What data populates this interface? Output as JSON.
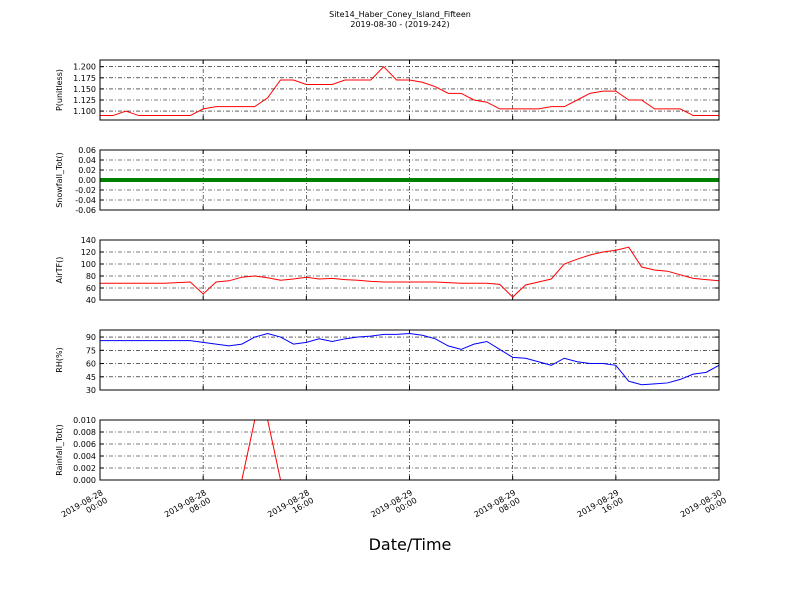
{
  "chart_data": {
    "type": "line",
    "title": "Site14_Haber_Coney_Island_Fifteen",
    "subtitle": "2019-08-30 - (2019-242)",
    "xlabel": "Date/Time",
    "grid": true,
    "xlim": [
      "2019-08-28 00:00",
      "2019-08-30 00:00"
    ],
    "xticks": [
      "2019-08-28 00:00",
      "2019-08-28 08:00",
      "2019-08-28 16:00",
      "2019-08-29 00:00",
      "2019-08-29 08:00",
      "2019-08-29 16:00",
      "2019-08-30 00:00"
    ],
    "x": [
      "2019-08-28 00:00",
      "2019-08-28 01:00",
      "2019-08-28 02:00",
      "2019-08-28 03:00",
      "2019-08-28 04:00",
      "2019-08-28 05:00",
      "2019-08-28 06:00",
      "2019-08-28 07:00",
      "2019-08-28 08:00",
      "2019-08-28 09:00",
      "2019-08-28 10:00",
      "2019-08-28 11:00",
      "2019-08-28 12:00",
      "2019-08-28 13:00",
      "2019-08-28 14:00",
      "2019-08-28 15:00",
      "2019-08-28 16:00",
      "2019-08-28 17:00",
      "2019-08-28 18:00",
      "2019-08-28 19:00",
      "2019-08-28 20:00",
      "2019-08-28 21:00",
      "2019-08-28 22:00",
      "2019-08-28 23:00",
      "2019-08-29 00:00",
      "2019-08-29 01:00",
      "2019-08-29 02:00",
      "2019-08-29 03:00",
      "2019-08-29 04:00",
      "2019-08-29 05:00",
      "2019-08-29 06:00",
      "2019-08-29 07:00",
      "2019-08-29 08:00",
      "2019-08-29 09:00",
      "2019-08-29 10:00",
      "2019-08-29 11:00",
      "2019-08-29 12:00",
      "2019-08-29 13:00",
      "2019-08-29 14:00",
      "2019-08-29 15:00",
      "2019-08-29 16:00",
      "2019-08-29 17:00",
      "2019-08-29 18:00",
      "2019-08-29 19:00",
      "2019-08-29 20:00",
      "2019-08-29 21:00",
      "2019-08-29 22:00",
      "2019-08-29 23:00",
      "2019-08-30 00:00"
    ],
    "panels": [
      {
        "ylabel": "P(unitless)",
        "color": "#ff0000",
        "ylim": [
          1.08,
          1.215
        ],
        "yticks": [
          {
            "value": 1.1,
            "label": "1.100"
          },
          {
            "value": 1.125,
            "label": "1.125"
          },
          {
            "value": 1.15,
            "label": "1.150"
          },
          {
            "value": 1.175,
            "label": "1.175"
          },
          {
            "value": 1.2,
            "label": "1.200"
          }
        ],
        "values": [
          1.09,
          1.09,
          1.1,
          1.09,
          1.09,
          1.09,
          1.09,
          1.09,
          1.105,
          1.11,
          1.11,
          1.11,
          1.11,
          1.13,
          1.17,
          1.17,
          1.16,
          1.16,
          1.16,
          1.17,
          1.17,
          1.17,
          1.2,
          1.17,
          1.17,
          1.165,
          1.155,
          1.14,
          1.14,
          1.125,
          1.12,
          1.105,
          1.105,
          1.105,
          1.105,
          1.11,
          1.11,
          1.125,
          1.14,
          1.145,
          1.145,
          1.125,
          1.125,
          1.105,
          1.105,
          1.105,
          1.09,
          1.09,
          1.09
        ]
      },
      {
        "ylabel": "Snowfall_Tot()",
        "color": "#008000",
        "ylim": [
          -0.06,
          0.06
        ],
        "yticks": [
          -0.06,
          -0.04,
          -0.02,
          {
            "value": 0,
            "label": "0.00"
          },
          0.02,
          0.04,
          0.06
        ],
        "values": [
          0,
          0,
          0,
          0,
          0,
          0,
          0,
          0,
          0,
          0,
          0,
          0,
          0,
          0,
          0,
          0,
          0,
          0,
          0,
          0,
          0,
          0,
          0,
          0,
          0,
          0,
          0,
          0,
          0,
          0,
          0,
          0,
          0,
          0,
          0,
          0,
          0,
          0,
          0,
          0,
          0,
          0,
          0,
          0,
          0,
          0,
          0,
          0,
          0
        ]
      },
      {
        "ylabel": "AirTF()",
        "color": "#ff0000",
        "ylim": [
          40,
          140
        ],
        "yticks": [
          40,
          60,
          80,
          100,
          120,
          140
        ],
        "values": [
          68,
          68,
          68,
          68,
          68,
          68,
          69,
          70,
          50,
          70,
          72,
          78,
          80,
          77,
          73,
          75,
          78,
          75,
          76,
          74,
          73,
          71,
          70,
          70,
          70,
          70,
          70,
          69,
          68,
          68,
          68,
          66,
          45,
          65,
          70,
          75,
          100,
          108,
          115,
          120,
          123,
          128,
          95,
          90,
          88,
          82,
          76,
          74,
          72
        ]
      },
      {
        "ylabel": "RH(%)",
        "color": "#0000ff",
        "ylim": [
          30,
          98
        ],
        "yticks": [
          30,
          45,
          60,
          75,
          90
        ],
        "values": [
          86,
          86,
          86,
          86,
          86,
          86,
          86,
          86,
          84,
          82,
          80,
          82,
          90,
          94,
          90,
          82,
          84,
          88,
          85,
          88,
          90,
          91,
          93,
          93,
          94,
          92,
          88,
          80,
          76,
          82,
          85,
          76,
          67,
          66,
          62,
          58,
          66,
          62,
          60,
          60,
          58,
          40,
          36,
          37,
          38,
          42,
          48,
          50,
          58
        ]
      },
      {
        "ylabel": "Rainfall_Tot()",
        "color": "#ff0000",
        "ylim": [
          0,
          0.01
        ],
        "yticks": [
          {
            "value": 0,
            "label": "0.000"
          },
          {
            "value": 0.002,
            "label": "0.002"
          },
          {
            "value": 0.004,
            "label": "0.004"
          },
          {
            "value": 0.006,
            "label": "0.006"
          },
          {
            "value": 0.008,
            "label": "0.008"
          },
          {
            "value": 0.01,
            "label": "0.010"
          }
        ],
        "values": [
          0,
          0,
          0,
          0,
          0,
          0,
          0,
          0,
          0,
          0,
          0,
          0,
          0.01,
          0.01,
          0,
          0,
          0,
          0,
          0,
          0,
          0,
          0,
          0,
          0,
          0,
          0,
          0,
          0,
          0,
          0,
          0,
          0,
          0,
          0,
          0,
          0,
          0,
          0,
          0,
          0,
          0,
          0,
          0,
          0,
          0,
          0,
          0,
          0,
          0
        ]
      }
    ]
  }
}
